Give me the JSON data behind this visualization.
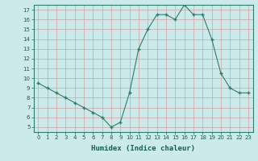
{
  "x": [
    0,
    1,
    2,
    3,
    4,
    5,
    6,
    7,
    8,
    9,
    10,
    11,
    12,
    13,
    14,
    15,
    16,
    17,
    18,
    19,
    20,
    21,
    22,
    23
  ],
  "y": [
    9.5,
    9.0,
    8.5,
    8.0,
    7.5,
    7.0,
    6.5,
    6.0,
    5.0,
    5.5,
    8.5,
    13.0,
    15.0,
    16.5,
    16.5,
    16.0,
    17.5,
    16.5,
    16.5,
    14.0,
    10.5,
    9.0,
    8.5,
    8.5
  ],
  "line_color": "#2d7d6e",
  "marker": "+",
  "marker_size": 3.5,
  "bg_color": "#cceaea",
  "grid_color": "#d4a0a0",
  "xlabel": "Humidex (Indice chaleur)",
  "ylabel": "",
  "xlim": [
    -0.5,
    23.5
  ],
  "ylim": [
    4.5,
    17.5
  ],
  "yticks": [
    5,
    6,
    7,
    8,
    9,
    10,
    11,
    12,
    13,
    14,
    15,
    16,
    17
  ],
  "xticks": [
    0,
    1,
    2,
    3,
    4,
    5,
    6,
    7,
    8,
    9,
    10,
    11,
    12,
    13,
    14,
    15,
    16,
    17,
    18,
    19,
    20,
    21,
    22,
    23
  ],
  "xtick_labels": [
    "0",
    "1",
    "2",
    "3",
    "4",
    "5",
    "6",
    "7",
    "8",
    "9",
    "10",
    "11",
    "12",
    "13",
    "14",
    "15",
    "16",
    "17",
    "18",
    "19",
    "20",
    "21",
    "22",
    "23"
  ],
  "tick_fontsize": 5.0,
  "xlabel_fontsize": 6.5,
  "spine_color": "#2d7d6e"
}
